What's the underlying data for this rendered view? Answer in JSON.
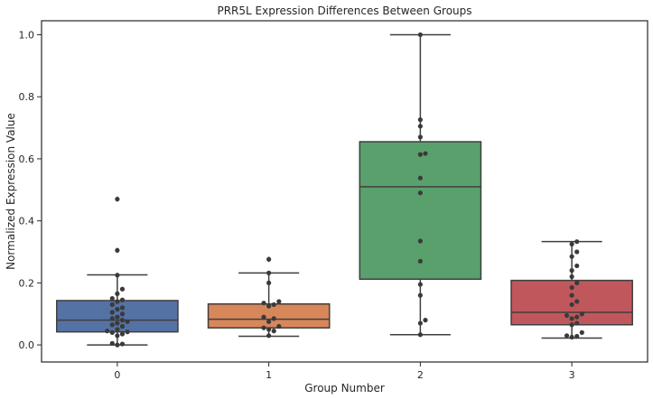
{
  "chart_data": {
    "type": "boxplot",
    "title": "PRR5L Expression Differences Between Groups",
    "xlabel": "Group Number",
    "ylabel": "Normalized Expression Value",
    "ylim": [
      -0.055,
      1.045
    ],
    "yticks": [
      0.0,
      0.2,
      0.4,
      0.6,
      0.8,
      1.0
    ],
    "ytick_labels": [
      "0.0",
      "0.2",
      "0.4",
      "0.6",
      "0.8",
      "1.0"
    ],
    "grid": false,
    "categories": [
      "0",
      "1",
      "2",
      "3"
    ],
    "colors": [
      "#5572a5",
      "#d7875a",
      "#5aa06c",
      "#c0575c"
    ],
    "edge_color": "#3f3f3f",
    "point_color": "#3a3a3a",
    "boxes": [
      {
        "category": "0",
        "q1": 0.042,
        "median": 0.08,
        "q3": 0.143,
        "whisker_low": 0.0,
        "whisker_high": 0.226,
        "outliers": [
          0.47,
          0.305
        ]
      },
      {
        "category": "1",
        "q1": 0.055,
        "median": 0.083,
        "q3": 0.132,
        "whisker_low": 0.028,
        "whisker_high": 0.232,
        "outliers": [
          0.276
        ]
      },
      {
        "category": "2",
        "q1": 0.212,
        "median": 0.51,
        "q3": 0.655,
        "whisker_low": 0.033,
        "whisker_high": 1.0,
        "outliers": []
      },
      {
        "category": "3",
        "q1": 0.065,
        "median": 0.105,
        "q3": 0.208,
        "whisker_low": 0.022,
        "whisker_high": 0.333,
        "outliers": []
      }
    ],
    "points": [
      {
        "category": "0",
        "values": [
          0.47,
          0.305,
          0.225,
          0.18,
          0.165,
          0.15,
          0.145,
          0.14,
          0.13,
          0.12,
          0.115,
          0.105,
          0.1,
          0.09,
          0.085,
          0.08,
          0.075,
          0.07,
          0.065,
          0.06,
          0.05,
          0.045,
          0.042,
          0.04,
          0.035,
          0.03,
          0.005,
          0.003,
          0.0
        ]
      },
      {
        "category": "1",
        "values": [
          0.276,
          0.232,
          0.2,
          0.14,
          0.135,
          0.13,
          0.125,
          0.09,
          0.085,
          0.075,
          0.06,
          0.055,
          0.05,
          0.045,
          0.03
        ]
      },
      {
        "category": "2",
        "values": [
          1.0,
          0.726,
          0.705,
          0.67,
          0.617,
          0.614,
          0.538,
          0.49,
          0.335,
          0.27,
          0.195,
          0.16,
          0.08,
          0.07,
          0.033
        ]
      },
      {
        "category": "3",
        "values": [
          0.333,
          0.325,
          0.3,
          0.285,
          0.255,
          0.24,
          0.22,
          0.2,
          0.185,
          0.16,
          0.14,
          0.13,
          0.1,
          0.095,
          0.09,
          0.085,
          0.07,
          0.065,
          0.04,
          0.03,
          0.028,
          0.025
        ]
      }
    ]
  }
}
